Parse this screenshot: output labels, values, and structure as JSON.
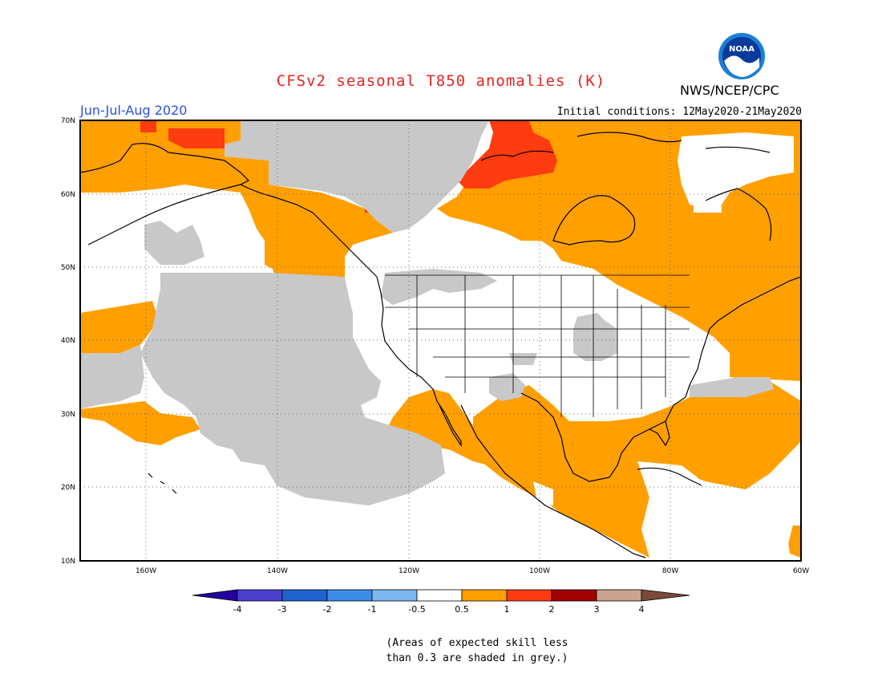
{
  "header": {
    "title": "CFSv2 seasonal T850 anomalies (K)",
    "season": "Jun-Jul-Aug 2020",
    "agency": "NWS/NCEP/CPC",
    "initial_conditions": "Initial conditions: 12May2020-21May2020",
    "logo_text": "NOAA"
  },
  "map": {
    "lat_labels": [
      "70N",
      "60N",
      "50N",
      "40N",
      "30N",
      "20N",
      "10N"
    ],
    "lon_labels": [
      "160W",
      "140W",
      "120W",
      "100W",
      "80W",
      "60W"
    ]
  },
  "colorbar": {
    "tick_labels": [
      "-4",
      "-3",
      "-2",
      "-1",
      "-0.5",
      "0.5",
      "1",
      "2",
      "3",
      "4"
    ],
    "colors": [
      "#24009e",
      "#4b3fcf",
      "#1f62d0",
      "#3d8de8",
      "#7cb7f2",
      "#ffffff",
      "#ff9f00",
      "#ff3b10",
      "#a40000",
      "#c8a490",
      "#7a4a3a"
    ]
  },
  "legend_note": {
    "line1": "(Areas of expected skill less",
    "line2": "than 0.3 are shaded in grey.)"
  },
  "colors": {
    "orange": "#ff9f00",
    "red": "#ff3b10",
    "grey": "#c8c8c8",
    "title_red": "#e8231f",
    "season_blue": "#2a4fe0"
  }
}
